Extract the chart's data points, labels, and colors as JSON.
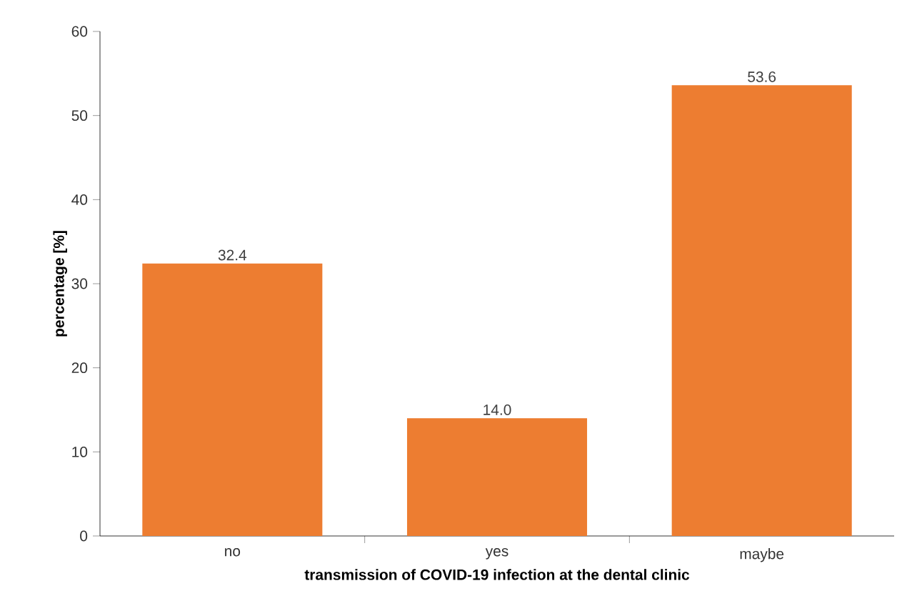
{
  "chart_data": {
    "type": "bar",
    "xlabel": "transmission of COVID-19 infection at the dental clinic",
    "ylabel": "percentage [%]",
    "categories": [
      "no",
      "yes",
      "maybe"
    ],
    "values": [
      32.4,
      14.0,
      53.6
    ],
    "value_labels": [
      "32.4",
      "14.0",
      "53.6"
    ],
    "color": "#ed7d31",
    "ylim": [
      0,
      60
    ],
    "yticks": [
      0,
      10,
      20,
      30,
      40,
      50,
      60
    ],
    "grid": false
  }
}
